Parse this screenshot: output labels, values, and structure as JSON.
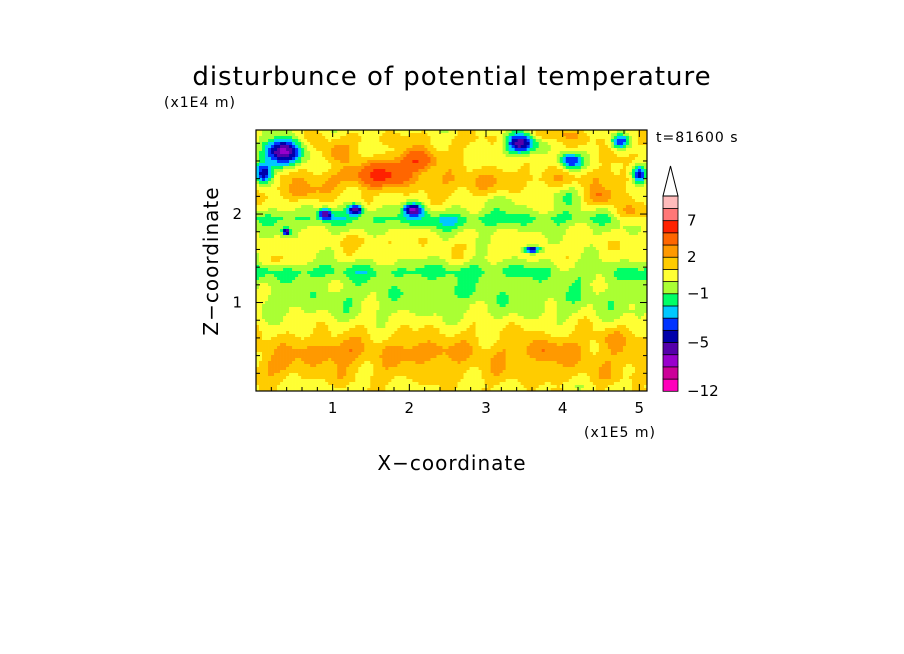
{
  "chart_data": {
    "type": "heatmap",
    "title": "disturbunce of potential temperature",
    "xlabel": "X−coordinate",
    "ylabel": "Z−coordinate",
    "x_unit": "(x1E5 m)",
    "y_unit": "(x1E4 m)",
    "time_label": "t=81600 s",
    "x_range": [
      0,
      5.1
    ],
    "y_range": [
      0,
      2.95
    ],
    "x_ticks": [
      {
        "value": 1,
        "label": "1"
      },
      {
        "value": 2,
        "label": "2"
      },
      {
        "value": 3,
        "label": "3"
      },
      {
        "value": 4,
        "label": "4"
      },
      {
        "value": 5,
        "label": "5"
      }
    ],
    "y_ticks": [
      {
        "value": 1,
        "label": "1"
      },
      {
        "value": 2,
        "label": "2"
      }
    ],
    "colorbar": {
      "levels": [
        -12,
        -10,
        -8,
        -6,
        -5,
        -4,
        -3,
        -2,
        -1,
        0,
        1,
        2,
        3,
        5,
        7,
        9,
        11
      ],
      "colors": [
        "#ff00bb",
        "#cc0099",
        "#9900cc",
        "#5500aa",
        "#0000aa",
        "#0033ff",
        "#00c8ff",
        "#00ff66",
        "#aaff33",
        "#ffff33",
        "#ffcc00",
        "#ff9900",
        "#ff6600",
        "#ff2200",
        "#ff7777",
        "#ffbbbb"
      ],
      "labels": [
        {
          "value": -12,
          "label": "−12"
        },
        {
          "value": -5,
          "label": "−5"
        },
        {
          "value": -1,
          "label": "−1"
        },
        {
          "value": 2,
          "label": "2"
        },
        {
          "value": 7,
          "label": "7"
        }
      ],
      "extends_max": true
    },
    "bands": [
      {
        "z": 0.05,
        "value": 0.7
      },
      {
        "z": 0.15,
        "value": 1.3
      },
      {
        "z": 0.3,
        "value": 1.6
      },
      {
        "z": 0.45,
        "value": 1.7
      },
      {
        "z": 0.6,
        "value": 1.2
      },
      {
        "z": 0.75,
        "value": 0.6
      },
      {
        "z": 0.9,
        "value": -0.2
      },
      {
        "z": 1.05,
        "value": -0.6
      },
      {
        "z": 1.2,
        "value": -0.4
      },
      {
        "z": 1.35,
        "value": -1.4
      },
      {
        "z": 1.5,
        "value": 0.3
      },
      {
        "z": 1.65,
        "value": 0.6
      },
      {
        "z": 1.8,
        "value": 0.1
      },
      {
        "z": 1.95,
        "value": -1.2
      },
      {
        "z": 2.1,
        "value": 0.4
      },
      {
        "z": 2.25,
        "value": 0.9
      },
      {
        "z": 2.4,
        "value": 1.6
      },
      {
        "z": 2.55,
        "value": 0.9
      },
      {
        "z": 2.7,
        "value": 0.8
      },
      {
        "z": 2.85,
        "value": 1.2
      },
      {
        "z": 2.95,
        "value": 0.6
      }
    ],
    "features": [
      {
        "x": 0.35,
        "z": 2.7,
        "rx": 0.25,
        "rz": 0.16,
        "amp": -7
      },
      {
        "x": 0.1,
        "z": 2.45,
        "rx": 0.12,
        "rz": 0.12,
        "amp": -6
      },
      {
        "x": 3.45,
        "z": 2.8,
        "rx": 0.2,
        "rz": 0.12,
        "amp": -7
      },
      {
        "x": 4.1,
        "z": 2.6,
        "rx": 0.15,
        "rz": 0.1,
        "amp": -5
      },
      {
        "x": 5.0,
        "z": 2.45,
        "rx": 0.1,
        "rz": 0.1,
        "amp": -6
      },
      {
        "x": 4.75,
        "z": 2.82,
        "rx": 0.12,
        "rz": 0.08,
        "amp": -5
      },
      {
        "x": 0.9,
        "z": 2.0,
        "rx": 0.08,
        "rz": 0.06,
        "amp": -6
      },
      {
        "x": 1.3,
        "z": 2.05,
        "rx": 0.1,
        "rz": 0.06,
        "amp": -6
      },
      {
        "x": 2.05,
        "z": 2.05,
        "rx": 0.12,
        "rz": 0.07,
        "amp": -6
      },
      {
        "x": 3.6,
        "z": 1.6,
        "rx": 0.1,
        "rz": 0.04,
        "amp": -6
      },
      {
        "x": 0.4,
        "z": 1.8,
        "rx": 0.05,
        "rz": 0.04,
        "amp": -6
      },
      {
        "x": 1.6,
        "z": 2.45,
        "rx": 0.35,
        "rz": 0.14,
        "amp": 4
      },
      {
        "x": 2.1,
        "z": 2.6,
        "rx": 0.25,
        "rz": 0.12,
        "amp": 4
      },
      {
        "x": 0.6,
        "z": 2.25,
        "rx": 0.25,
        "rz": 0.1,
        "amp": 2
      },
      {
        "x": 4.9,
        "z": 2.0,
        "rx": 0.25,
        "rz": 0.12,
        "amp": 2.5
      },
      {
        "x": 4.5,
        "z": 2.2,
        "rx": 0.2,
        "rz": 0.1,
        "amp": 2
      },
      {
        "x": 1.0,
        "z": 2.7,
        "rx": 0.2,
        "rz": 0.1,
        "amp": 1.5
      },
      {
        "x": 3.8,
        "z": 2.9,
        "rx": 0.3,
        "rz": 0.06,
        "amp": 1.5
      },
      {
        "x": 2.8,
        "z": 2.3,
        "rx": 0.4,
        "rz": 0.12,
        "amp": 0.8
      },
      {
        "x": 4.0,
        "z": 2.2,
        "rx": 0.3,
        "rz": 0.12,
        "amp": -1.2
      },
      {
        "x": 3.2,
        "z": 2.15,
        "rx": 0.3,
        "rz": 0.1,
        "amp": -1
      },
      {
        "x": 2.5,
        "z": 1.9,
        "rx": 0.6,
        "rz": 0.08,
        "amp": -0.9
      },
      {
        "x": 1.0,
        "z": 0.45,
        "rx": 0.35,
        "rz": 0.12,
        "amp": 1.3
      },
      {
        "x": 2.2,
        "z": 0.45,
        "rx": 0.35,
        "rz": 0.12,
        "amp": 1.2
      },
      {
        "x": 3.8,
        "z": 0.45,
        "rx": 0.35,
        "rz": 0.12,
        "amp": 1.2
      },
      {
        "x": 4.6,
        "z": 0.6,
        "rx": 0.2,
        "rz": 0.1,
        "amp": 1.0
      },
      {
        "x": 0.3,
        "z": 0.3,
        "rx": 0.2,
        "rz": 0.1,
        "amp": 1.0
      },
      {
        "x": 1.5,
        "z": 1.7,
        "rx": 0.5,
        "rz": 0.06,
        "amp": 0.8
      },
      {
        "x": 2.5,
        "z": 1.15,
        "rx": 0.5,
        "rz": 0.08,
        "amp": -0.6
      },
      {
        "x": 4.3,
        "z": 1.35,
        "rx": 0.5,
        "rz": 0.08,
        "amp": 0.8
      },
      {
        "x": 0.2,
        "z": 1.45,
        "rx": 0.3,
        "rz": 0.06,
        "amp": 0.8
      }
    ]
  }
}
